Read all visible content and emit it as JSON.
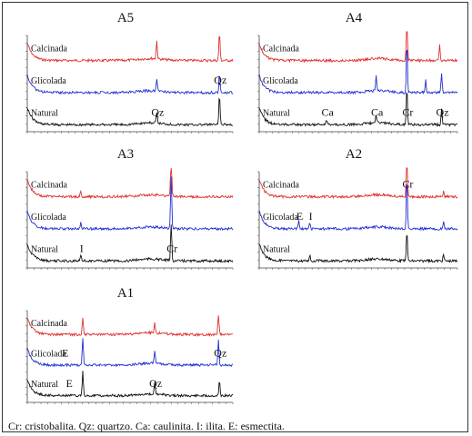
{
  "chart_data": [
    {
      "type": "line",
      "title": "A5",
      "series": [
        {
          "name": "Calcinada",
          "color": "#e03030",
          "peaks": [
            {
              "x": 0.63,
              "h": 0.35
            },
            {
              "x": 0.935,
              "h": 0.55
            }
          ]
        },
        {
          "name": "Glicolada",
          "color": "#2030d0",
          "peaks": [
            {
              "x": 0.63,
              "h": 0.25
            },
            {
              "x": 0.935,
              "h": 0.35
            }
          ]
        },
        {
          "name": "Natural",
          "color": "#111111",
          "peaks": [
            {
              "x": 0.63,
              "h": 0.2
            },
            {
              "x": 0.935,
              "h": 0.6
            }
          ]
        }
      ],
      "annotations": [
        {
          "text": "Qz",
          "x": 0.63,
          "series": "Natural"
        },
        {
          "text": "Qz",
          "x": 0.935,
          "series": "Glicolada"
        }
      ]
    },
    {
      "type": "line",
      "title": "A4",
      "series": [
        {
          "name": "Calcinada",
          "color": "#e03030",
          "peaks": [
            {
              "x": 0.745,
              "h": 0.95
            },
            {
              "x": 0.91,
              "h": 0.3
            }
          ]
        },
        {
          "name": "Glicolada",
          "color": "#2030d0",
          "peaks": [
            {
              "x": 0.59,
              "h": 0.3
            },
            {
              "x": 0.745,
              "h": 0.95
            },
            {
              "x": 0.84,
              "h": 0.25
            },
            {
              "x": 0.92,
              "h": 0.35
            }
          ]
        },
        {
          "name": "Natural",
          "color": "#111111",
          "peaks": [
            {
              "x": 0.34,
              "h": 0.1
            },
            {
              "x": 0.59,
              "h": 0.15
            },
            {
              "x": 0.745,
              "h": 0.7
            },
            {
              "x": 0.92,
              "h": 0.3
            }
          ]
        }
      ],
      "annotations": [
        {
          "text": "Ca",
          "x": 0.34,
          "series": "Natural"
        },
        {
          "text": "Ca",
          "x": 0.59,
          "series": "Natural"
        },
        {
          "text": "Cr",
          "x": 0.745,
          "series": "Natural"
        },
        {
          "text": "Qz",
          "x": 0.92,
          "series": "Natural"
        }
      ]
    },
    {
      "type": "line",
      "title": "A3",
      "series": [
        {
          "name": "Calcinada",
          "color": "#e03030",
          "peaks": [
            {
              "x": 0.26,
              "h": 0.12
            },
            {
              "x": 0.7,
              "h": 0.8
            }
          ]
        },
        {
          "name": "Glicolada",
          "color": "#2030d0",
          "peaks": [
            {
              "x": 0.26,
              "h": 0.12
            },
            {
              "x": 0.7,
              "h": 1.0
            }
          ]
        },
        {
          "name": "Natural",
          "color": "#111111",
          "peaks": [
            {
              "x": 0.26,
              "h": 0.12
            },
            {
              "x": 0.7,
              "h": 0.7
            }
          ]
        }
      ],
      "annotations": [
        {
          "text": "I",
          "x": 0.26,
          "series": "Natural"
        },
        {
          "text": "Cr",
          "x": 0.7,
          "series": "Natural"
        }
      ]
    },
    {
      "type": "line",
      "title": "A2",
      "series": [
        {
          "name": "Calcinada",
          "color": "#e03030",
          "peaks": [
            {
              "x": 0.745,
              "h": 1.0
            },
            {
              "x": 0.93,
              "h": 0.12
            }
          ]
        },
        {
          "name": "Glicolada",
          "color": "#2030d0",
          "peaks": [
            {
              "x": 0.2,
              "h": 0.15
            },
            {
              "x": 0.255,
              "h": 0.12
            },
            {
              "x": 0.745,
              "h": 1.0
            },
            {
              "x": 0.93,
              "h": 0.12
            }
          ]
        },
        {
          "name": "Natural",
          "color": "#111111",
          "peaks": [
            {
              "x": 0.255,
              "h": 0.12
            },
            {
              "x": 0.745,
              "h": 0.6
            },
            {
              "x": 0.93,
              "h": 0.12
            }
          ]
        }
      ],
      "annotations": [
        {
          "text": "E",
          "x": 0.2,
          "series": "Glicolada"
        },
        {
          "text": "I",
          "x": 0.255,
          "series": "Glicolada"
        },
        {
          "text": "Cr",
          "x": 0.745,
          "series": "Calcinada"
        }
      ]
    },
    {
      "type": "line",
      "title": "A1",
      "series": [
        {
          "name": "Calcinada",
          "color": "#e03030",
          "peaks": [
            {
              "x": 0.27,
              "h": 0.35
            },
            {
              "x": 0.62,
              "h": 0.2
            },
            {
              "x": 0.93,
              "h": 0.4
            }
          ]
        },
        {
          "name": "Glicolada",
          "color": "#2030d0",
          "peaks": [
            {
              "x": 0.27,
              "h": 0.55
            },
            {
              "x": 0.62,
              "h": 0.25
            },
            {
              "x": 0.93,
              "h": 0.5
            }
          ]
        },
        {
          "name": "Natural",
          "color": "#111111",
          "peaks": [
            {
              "x": 0.27,
              "h": 0.5
            },
            {
              "x": 0.62,
              "h": 0.25
            },
            {
              "x": 0.935,
              "h": 0.3
            }
          ]
        }
      ],
      "annotations": [
        {
          "text": "E",
          "x": 0.18,
          "series": "Glicolada"
        },
        {
          "text": "E",
          "x": 0.2,
          "series": "Natural"
        },
        {
          "text": "Qz",
          "x": 0.62,
          "series": "Natural"
        },
        {
          "text": "Qz",
          "x": 0.935,
          "series": "Glicolada"
        }
      ]
    }
  ],
  "caption": "Cr: cristobalita. Qz: quartzo. Ca: caulinita. I: ilita. E: esmectita."
}
